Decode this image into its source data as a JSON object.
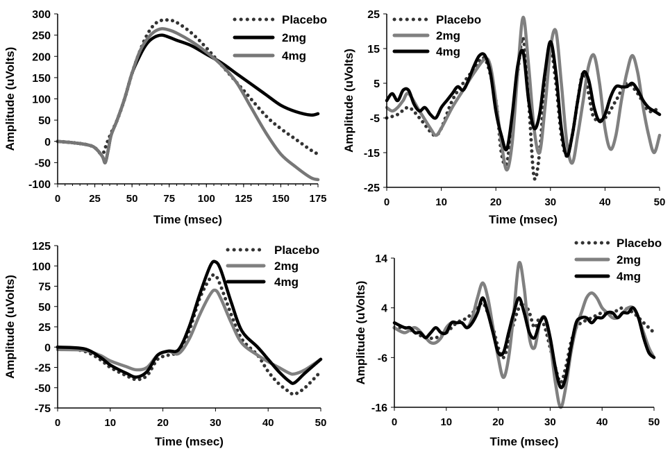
{
  "chart_data": [
    {
      "type": "line",
      "xlabel": "Time (msec)",
      "ylabel": "Amplitude (uVolts)",
      "xlim": [
        0,
        175
      ],
      "ylim": [
        -100,
        300
      ],
      "xticks": [
        0,
        25,
        50,
        75,
        100,
        125,
        150,
        175
      ],
      "yticks": [
        -100,
        -50,
        0,
        50,
        100,
        150,
        200,
        250,
        300
      ],
      "legend_position": "top-right",
      "series": [
        {
          "name": "Placebo",
          "color": "#333333",
          "style": "dotted",
          "x": [
            0,
            10,
            20,
            25,
            30,
            33,
            36,
            40,
            45,
            50,
            55,
            60,
            65,
            70,
            75,
            80,
            90,
            100,
            110,
            125,
            140,
            150,
            160,
            170,
            175
          ],
          "y": [
            0,
            -3,
            -8,
            -15,
            -30,
            -5,
            20,
            50,
            100,
            160,
            210,
            250,
            275,
            285,
            285,
            280,
            255,
            220,
            180,
            120,
            60,
            30,
            5,
            -20,
            -30
          ]
        },
        {
          "name": "2mg",
          "color": "#000000",
          "style": "solid",
          "x": [
            0,
            10,
            20,
            25,
            30,
            32,
            34,
            36,
            40,
            45,
            50,
            55,
            60,
            65,
            70,
            75,
            80,
            90,
            100,
            110,
            120,
            130,
            140,
            150,
            160,
            170,
            175
          ],
          "y": [
            0,
            -3,
            -8,
            -15,
            -35,
            -50,
            -20,
            15,
            50,
            100,
            160,
            200,
            230,
            245,
            250,
            245,
            238,
            225,
            205,
            185,
            160,
            135,
            110,
            85,
            70,
            62,
            65
          ]
        },
        {
          "name": "4mg",
          "color": "#777777",
          "style": "solid",
          "x": [
            0,
            10,
            20,
            25,
            30,
            32,
            34,
            36,
            40,
            45,
            50,
            55,
            60,
            65,
            70,
            75,
            80,
            90,
            100,
            110,
            120,
            130,
            140,
            150,
            160,
            170,
            175
          ],
          "y": [
            0,
            -3,
            -8,
            -15,
            -35,
            -50,
            -20,
            15,
            50,
            100,
            160,
            210,
            240,
            258,
            265,
            262,
            255,
            235,
            210,
            180,
            140,
            80,
            20,
            -30,
            -60,
            -85,
            -90
          ]
        }
      ]
    },
    {
      "type": "line",
      "xlabel": "Time (msec)",
      "ylabel": "Amplitude (uVolts)",
      "xlim": [
        0,
        50
      ],
      "ylim": [
        -25,
        25
      ],
      "xticks": [
        0,
        10,
        20,
        30,
        40,
        50
      ],
      "yticks": [
        -25,
        -15,
        -5,
        5,
        15,
        25
      ],
      "legend_position": "top-left",
      "series": [
        {
          "name": "Placebo",
          "color": "#333333",
          "style": "dotted",
          "x": [
            0,
            2,
            4,
            6,
            8,
            9,
            10,
            12,
            14,
            16,
            18,
            20,
            21,
            22,
            23,
            24,
            25,
            26,
            27,
            28,
            29,
            30,
            31,
            32,
            33,
            34,
            35,
            36,
            37,
            38,
            40,
            42,
            44,
            46,
            48,
            50
          ],
          "y": [
            -5,
            -4,
            -2,
            -5,
            -9,
            -10,
            -8,
            0,
            5,
            9,
            12,
            0,
            -15,
            -18,
            -5,
            8,
            18,
            0,
            -22,
            -15,
            5,
            15,
            5,
            -10,
            -16,
            -10,
            0,
            8,
            2,
            -5,
            -5,
            0,
            5,
            2,
            -3,
            -2
          ]
        },
        {
          "name": "2mg",
          "color": "#808080",
          "style": "solid",
          "x": [
            0,
            1,
            2,
            3,
            4,
            6,
            8,
            9,
            10,
            12,
            14,
            16,
            18,
            19,
            20,
            21,
            22,
            23,
            24,
            25,
            26,
            27,
            28,
            29,
            30,
            31,
            32,
            33,
            34,
            35,
            36,
            37,
            38,
            39,
            40,
            41,
            42,
            43,
            44,
            45,
            46,
            47,
            48,
            49,
            50
          ],
          "y": [
            -2,
            -3,
            -2,
            0,
            2,
            -3,
            -8,
            -10,
            -8,
            -2,
            3,
            8,
            12,
            10,
            0,
            -12,
            -20,
            -12,
            8,
            24,
            10,
            -8,
            -15,
            -2,
            15,
            20,
            5,
            -12,
            -18,
            -10,
            0,
            10,
            13,
            5,
            -8,
            -14,
            -10,
            0,
            8,
            13,
            8,
            -2,
            -10,
            -15,
            -10
          ]
        },
        {
          "name": "4mg",
          "color": "#000000",
          "style": "solid",
          "x": [
            0,
            1,
            2,
            3,
            4,
            5,
            6,
            7,
            8,
            9,
            10,
            11,
            12,
            13,
            14,
            15,
            16,
            17,
            18,
            19,
            20,
            21,
            22,
            23,
            24,
            25,
            26,
            27,
            28,
            29,
            30,
            31,
            32,
            33,
            34,
            35,
            36,
            37,
            38,
            39,
            40,
            41,
            42,
            43,
            44,
            45,
            46,
            47,
            48,
            49,
            50
          ],
          "y": [
            0,
            2,
            0,
            3,
            3,
            -1,
            -3,
            -2,
            -4,
            -5,
            -2,
            0,
            2,
            4,
            3,
            6,
            10,
            13,
            13,
            8,
            -3,
            -10,
            -14,
            -4,
            10,
            14,
            0,
            -8,
            -4,
            8,
            17,
            8,
            -8,
            -16,
            -10,
            0,
            8,
            6,
            -2,
            -6,
            -4,
            1,
            4,
            4,
            4,
            5,
            3,
            0,
            -2,
            -3,
            -4
          ]
        }
      ]
    },
    {
      "type": "line",
      "xlabel": "Time (msec)",
      "ylabel": "Amplitude (uVolts)",
      "xlim": [
        0,
        50
      ],
      "ylim": [
        -75,
        125
      ],
      "xticks": [
        0,
        10,
        20,
        30,
        40,
        50
      ],
      "yticks": [
        -75,
        -50,
        -25,
        0,
        25,
        50,
        75,
        100,
        125
      ],
      "legend_position": "top-right",
      "series": [
        {
          "name": "Placebo",
          "color": "#333333",
          "style": "dotted",
          "x": [
            0,
            5,
            8,
            10,
            13,
            15,
            17,
            19,
            21,
            23,
            25,
            27,
            29,
            30,
            31,
            33,
            35,
            38,
            40,
            42,
            44,
            45,
            47,
            50
          ],
          "y": [
            0,
            -5,
            -15,
            -25,
            -35,
            -40,
            -35,
            -15,
            -10,
            -5,
            20,
            60,
            85,
            88,
            75,
            40,
            10,
            -10,
            -30,
            -45,
            -55,
            -58,
            -50,
            -30
          ]
        },
        {
          "name": "2mg",
          "color": "#808080",
          "style": "solid",
          "x": [
            0,
            5,
            8,
            10,
            13,
            15,
            17,
            19,
            21,
            23,
            25,
            27,
            29,
            30,
            31,
            33,
            35,
            38,
            40,
            42,
            44,
            45,
            47,
            50
          ],
          "y": [
            -3,
            -4,
            -10,
            -17,
            -24,
            -28,
            -25,
            -10,
            -5,
            -8,
            10,
            40,
            65,
            70,
            60,
            30,
            5,
            -10,
            -18,
            -25,
            -32,
            -33,
            -28,
            -15
          ]
        },
        {
          "name": "4mg",
          "color": "#000000",
          "style": "solid",
          "x": [
            0,
            5,
            8,
            10,
            13,
            15,
            17,
            19,
            21,
            23,
            25,
            27,
            29,
            30,
            31,
            33,
            35,
            38,
            40,
            42,
            44,
            45,
            47,
            50
          ],
          "y": [
            0,
            -2,
            -12,
            -22,
            -32,
            -37,
            -30,
            -10,
            -5,
            -3,
            25,
            65,
            100,
            105,
            95,
            55,
            20,
            0,
            -15,
            -30,
            -42,
            -44,
            -32,
            -15
          ]
        }
      ]
    },
    {
      "type": "line",
      "xlabel": "Time (msec)",
      "ylabel": "Amplitude (uVolts)",
      "xlim": [
        0,
        50
      ],
      "ylim": [
        -16,
        14
      ],
      "xticks": [
        0,
        10,
        20,
        30,
        40,
        50
      ],
      "yticks": [
        -16,
        -6,
        4,
        14
      ],
      "yaxis_crosses_at": -16,
      "legend_position": "top-right",
      "series": [
        {
          "name": "Placebo",
          "color": "#333333",
          "style": "dotted",
          "x": [
            0,
            2,
            4,
            6,
            8,
            10,
            12,
            14,
            16,
            17,
            18,
            19,
            20,
            21,
            22,
            23,
            24,
            25,
            26,
            27,
            28,
            29,
            30,
            31,
            32,
            33,
            34,
            35,
            36,
            38,
            40,
            42,
            44,
            46,
            48,
            50
          ],
          "y": [
            0,
            0,
            -1,
            -2,
            -2,
            -1,
            1,
            2,
            4,
            5,
            3,
            0,
            -4,
            -6,
            -3,
            1,
            4,
            5,
            3,
            0,
            2,
            0,
            -4,
            -8,
            -11,
            -8,
            -3,
            0,
            1,
            2,
            3,
            3,
            4,
            3,
            1,
            -1
          ]
        },
        {
          "name": "2mg",
          "color": "#808080",
          "style": "solid",
          "x": [
            0,
            2,
            4,
            6,
            7,
            8,
            9,
            10,
            11,
            12,
            13,
            14,
            15,
            16,
            17,
            18,
            19,
            20,
            21,
            22,
            23,
            24,
            25,
            26,
            27,
            28,
            29,
            30,
            31,
            32,
            33,
            34,
            35,
            36,
            37,
            38,
            39,
            40,
            41,
            42,
            43,
            44,
            45,
            46,
            47,
            48,
            49,
            50
          ],
          "y": [
            0,
            -1,
            0,
            -2,
            -3,
            -3,
            -2,
            0,
            1,
            1,
            1,
            0,
            2,
            6,
            9,
            6,
            0,
            -6,
            -10,
            -6,
            3,
            13,
            8,
            -2,
            -4,
            1,
            2,
            -3,
            -11,
            -16,
            -12,
            -5,
            0,
            3,
            6,
            7,
            6,
            4,
            3,
            2,
            2,
            3,
            4,
            4,
            2,
            -1,
            -4,
            -6
          ]
        },
        {
          "name": "4mg",
          "color": "#000000",
          "style": "solid",
          "x": [
            0,
            2,
            3,
            4,
            5,
            6,
            7,
            8,
            9,
            10,
            11,
            12,
            13,
            14,
            15,
            16,
            17,
            18,
            19,
            20,
            21,
            22,
            23,
            24,
            25,
            26,
            27,
            28,
            29,
            30,
            31,
            32,
            33,
            34,
            35,
            36,
            37,
            38,
            39,
            40,
            41,
            42,
            43,
            44,
            45,
            46,
            47,
            48,
            49,
            50
          ],
          "y": [
            1,
            0,
            0,
            -1,
            -1,
            -2,
            -1,
            0,
            -1,
            -1,
            1,
            1,
            1,
            0,
            1,
            3,
            6,
            3,
            -1,
            -5,
            -5,
            -1,
            3,
            6,
            3,
            -1,
            -2,
            1,
            2,
            -2,
            -8,
            -12,
            -10,
            -4,
            1,
            2,
            2,
            1,
            2,
            2,
            3,
            3,
            2,
            3,
            3,
            4,
            2,
            -2,
            -5,
            -6
          ]
        }
      ]
    }
  ]
}
